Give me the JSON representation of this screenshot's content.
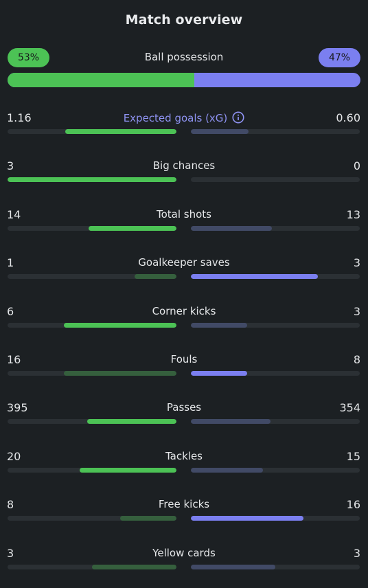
{
  "title": "Match overview",
  "possession": {
    "label": "Ball possession",
    "home": "53%",
    "away": "47%",
    "home_fraction": 0.53
  },
  "colors": {
    "home_strong": "#4cc255",
    "home_weak": "#355f3d",
    "away_strong": "#7b7ff0",
    "away_weak": "#414a66",
    "track": "#2b3034"
  },
  "stats": [
    {
      "label": "Expected goals (xG)",
      "home": "1.16",
      "away": "0.60",
      "home_num": 1.16,
      "away_num": 0.6,
      "info_icon": "info-icon",
      "accent": true
    },
    {
      "label": "Big chances",
      "home": "3",
      "away": "0",
      "home_num": 3,
      "away_num": 0
    },
    {
      "label": "Total shots",
      "home": "14",
      "away": "13",
      "home_num": 14,
      "away_num": 13
    },
    {
      "label": "Goalkeeper saves",
      "home": "1",
      "away": "3",
      "home_num": 1,
      "away_num": 3
    },
    {
      "label": "Corner kicks",
      "home": "6",
      "away": "3",
      "home_num": 6,
      "away_num": 3
    },
    {
      "label": "Fouls",
      "home": "16",
      "away": "8",
      "home_num": 16,
      "away_num": 8,
      "lower_is_better": true
    },
    {
      "label": "Passes",
      "home": "395",
      "away": "354",
      "home_num": 395,
      "away_num": 354
    },
    {
      "label": "Tackles",
      "home": "20",
      "away": "15",
      "home_num": 20,
      "away_num": 15
    },
    {
      "label": "Free kicks",
      "home": "8",
      "away": "16",
      "home_num": 8,
      "away_num": 16
    },
    {
      "label": "Yellow cards",
      "home": "3",
      "away": "3",
      "home_num": 3,
      "away_num": 3,
      "lower_is_better": true
    }
  ]
}
